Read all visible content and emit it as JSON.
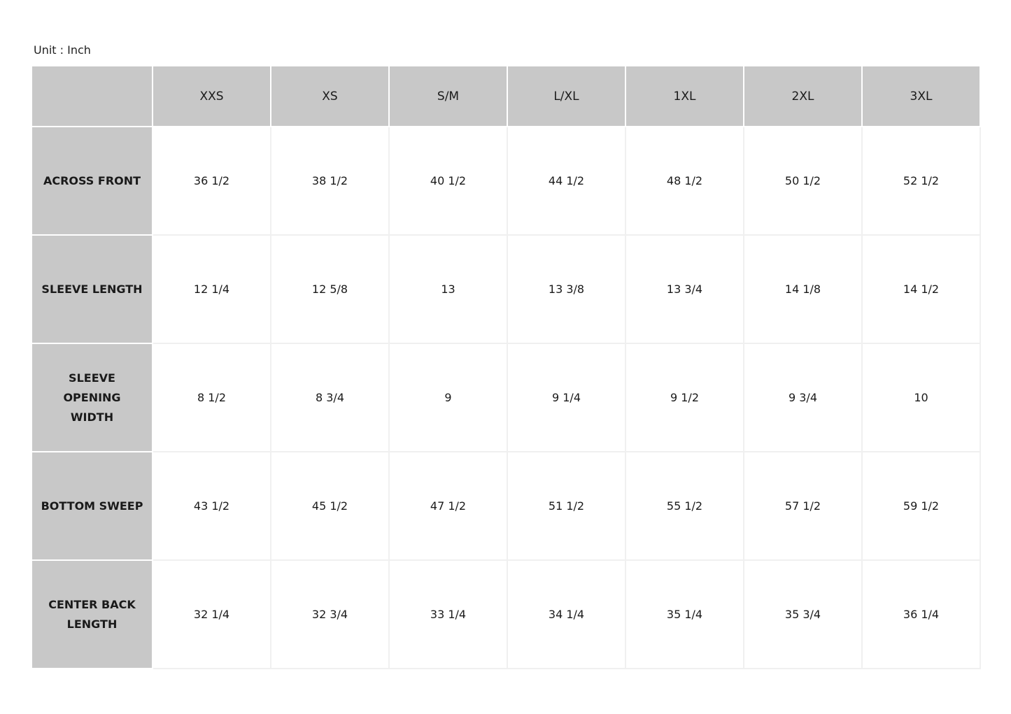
{
  "unit_label": "Unit : Inch",
  "table": {
    "sizes": [
      "XXS",
      "XS",
      "S/M",
      "L/XL",
      "1XL",
      "2XL",
      "3XL"
    ],
    "rows": [
      {
        "label": "ACROSS FRONT",
        "values": [
          "36 1/2",
          "38 1/2",
          "40 1/2",
          "44 1/2",
          "48 1/2",
          "50 1/2",
          "52 1/2"
        ]
      },
      {
        "label": "SLEEVE LENGTH",
        "values": [
          "12 1/4",
          "12 5/8",
          "13",
          "13 3/8",
          "13 3/4",
          "14 1/8",
          "14 1/2"
        ]
      },
      {
        "label": "SLEEVE OPENING WIDTH",
        "values": [
          "8 1/2",
          "8 3/4",
          "9",
          "9 1/4",
          "9 1/2",
          "9 3/4",
          "10"
        ]
      },
      {
        "label": "BOTTOM SWEEP",
        "values": [
          "43 1/2",
          "45 1/2",
          "47 1/2",
          "51 1/2",
          "55 1/2",
          "57 1/2",
          "59 1/2"
        ]
      },
      {
        "label": "CENTER BACK LENGTH",
        "values": [
          "32 1/4",
          "32 3/4",
          "33 1/4",
          "34 1/4",
          "35 1/4",
          "35 3/4",
          "36 1/4"
        ]
      }
    ]
  },
  "colors": {
    "header_bg": "#c8c8c8",
    "cell_bg": "#ffffff"
  }
}
